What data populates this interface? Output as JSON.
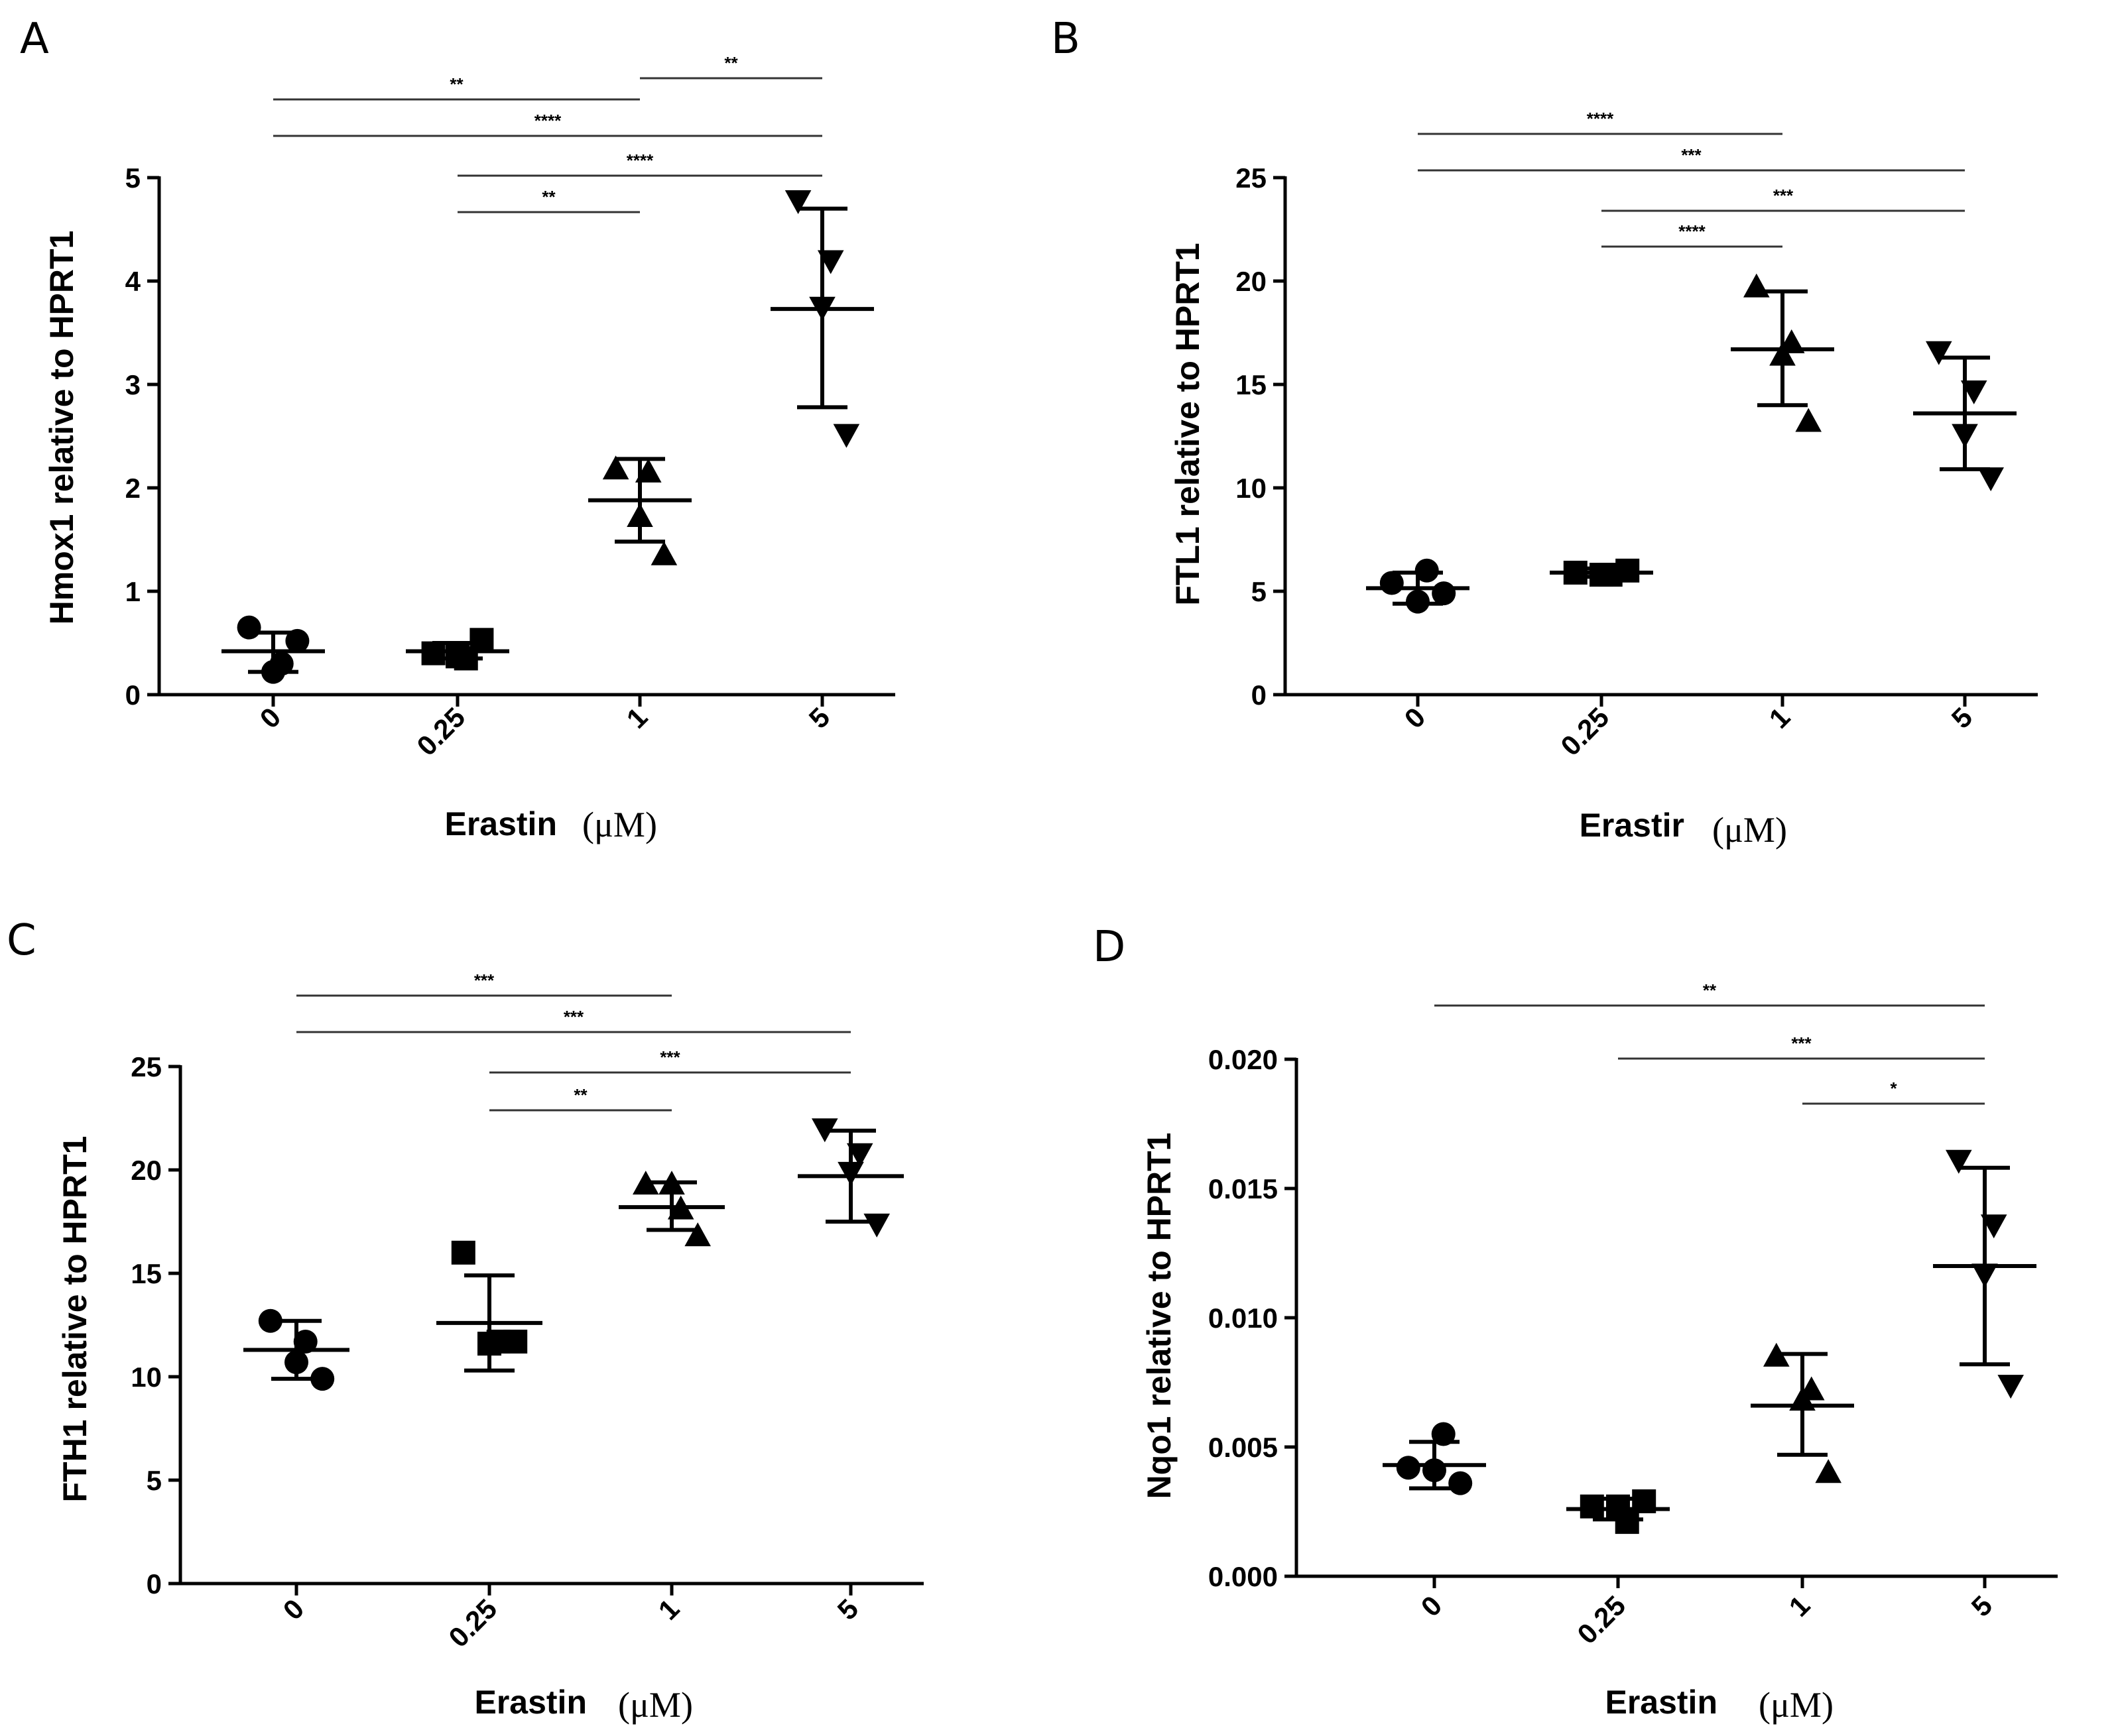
{
  "chart_data": [
    {
      "type": "scatter",
      "panel": "A",
      "ylabel": "Hmox1 relative to HPRT1",
      "xlabel": "Erastin",
      "xunit": "(μM)",
      "categories": [
        "0",
        "0.25",
        "1",
        "5"
      ],
      "yticks": [
        "0",
        "1",
        "2",
        "3",
        "4",
        "5"
      ],
      "ylim": [
        0,
        5
      ],
      "series": [
        {
          "category": "0",
          "marker": "circle",
          "points": [
            0.65,
            0.3,
            0.22,
            0.52
          ],
          "mean": 0.42,
          "sd_low": 0.22,
          "sd_high": 0.6
        },
        {
          "category": "0.25",
          "marker": "square",
          "points": [
            0.4,
            0.35,
            0.37,
            0.53
          ],
          "mean": 0.42,
          "sd_low": 0.35,
          "sd_high": 0.5
        },
        {
          "category": "1",
          "marker": "triangle-up",
          "points": [
            2.18,
            2.15,
            1.72,
            1.35
          ],
          "mean": 1.88,
          "sd_low": 1.48,
          "sd_high": 2.28
        },
        {
          "category": "5",
          "marker": "triangle-down",
          "points": [
            4.78,
            4.2,
            3.75,
            2.52
          ],
          "mean": 3.73,
          "sd_low": 2.78,
          "sd_high": 4.7
        }
      ],
      "significance": [
        {
          "from": "0",
          "to": "1",
          "label": "**"
        },
        {
          "from": "1",
          "to": "5",
          "label": "**"
        },
        {
          "from": "0",
          "to": "5",
          "label": "****"
        },
        {
          "from": "0.25",
          "to": "5",
          "label": "****"
        },
        {
          "from": "0.25",
          "to": "1",
          "label": "**"
        }
      ]
    },
    {
      "type": "scatter",
      "panel": "B",
      "ylabel": "FTL1 relative to HPRT1",
      "xlabel": "Erastir",
      "xunit": "(μM)",
      "categories": [
        "0",
        "0.25",
        "1",
        "5"
      ],
      "yticks": [
        "0",
        "5",
        "10",
        "15",
        "20",
        "25"
      ],
      "ylim": [
        0,
        25
      ],
      "series": [
        {
          "category": "0",
          "marker": "circle",
          "points": [
            5.4,
            6.0,
            4.5,
            4.9
          ],
          "mean": 5.15,
          "sd_low": 4.4,
          "sd_high": 5.9
        },
        {
          "category": "0.25",
          "marker": "square",
          "points": [
            5.9,
            5.8,
            5.8,
            6.0
          ],
          "mean": 5.9,
          "sd_low": 5.7,
          "sd_high": 6.1
        },
        {
          "category": "1",
          "marker": "triangle-up",
          "points": [
            19.7,
            17.0,
            16.4,
            13.2
          ],
          "mean": 16.7,
          "sd_low": 14.0,
          "sd_high": 19.5
        },
        {
          "category": "5",
          "marker": "triangle-down",
          "points": [
            16.6,
            14.7,
            12.6,
            10.5
          ],
          "mean": 13.6,
          "sd_low": 10.9,
          "sd_high": 16.3
        }
      ],
      "significance": [
        {
          "from": "0",
          "to": "1",
          "label": "****"
        },
        {
          "from": "0",
          "to": "5",
          "label": "***"
        },
        {
          "from": "0.25",
          "to": "5",
          "label": "***"
        },
        {
          "from": "0.25",
          "to": "1",
          "label": "****"
        }
      ]
    },
    {
      "type": "scatter",
      "panel": "C",
      "ylabel": "FTH1 relative to HPRT1",
      "xlabel": "Erastin",
      "xunit": "(μM)",
      "categories": [
        "0",
        "0.25",
        "1",
        "5"
      ],
      "yticks": [
        "0",
        "5",
        "10",
        "15",
        "20",
        "25"
      ],
      "ylim": [
        0,
        25
      ],
      "series": [
        {
          "category": "0",
          "marker": "circle",
          "points": [
            12.7,
            11.7,
            10.7,
            9.9
          ],
          "mean": 11.3,
          "sd_low": 9.9,
          "sd_high": 12.7
        },
        {
          "category": "0.25",
          "marker": "square",
          "points": [
            16.0,
            11.7,
            11.6,
            11.7
          ],
          "mean": 12.6,
          "sd_low": 10.3,
          "sd_high": 14.9
        },
        {
          "category": "1",
          "marker": "triangle-up",
          "points": [
            19.3,
            18.1,
            19.3,
            16.8
          ],
          "mean": 18.2,
          "sd_low": 17.1,
          "sd_high": 19.4
        },
        {
          "category": "5",
          "marker": "triangle-down",
          "points": [
            22.0,
            20.8,
            19.9,
            17.4
          ],
          "mean": 19.7,
          "sd_low": 17.5,
          "sd_high": 21.9
        }
      ],
      "significance": [
        {
          "from": "0",
          "to": "1",
          "label": "***"
        },
        {
          "from": "0",
          "to": "5",
          "label": "***"
        },
        {
          "from": "0.25",
          "to": "5",
          "label": "***"
        },
        {
          "from": "0.25",
          "to": "1",
          "label": "**"
        }
      ]
    },
    {
      "type": "scatter",
      "panel": "D",
      "ylabel": "Nqo1 relative to HPRT1",
      "xlabel": "Erastin",
      "xunit": "(μM)",
      "categories": [
        "0",
        "0.25",
        "1",
        "5"
      ],
      "yticks": [
        "0.000",
        "0.005",
        "0.010",
        "0.015",
        "0.020"
      ],
      "ylim": [
        0,
        0.02
      ],
      "series": [
        {
          "category": "0",
          "marker": "circle",
          "points": [
            0.0042,
            0.0055,
            0.0041,
            0.0036
          ],
          "mean": 0.0043,
          "sd_low": 0.0034,
          "sd_high": 0.0052
        },
        {
          "category": "0.25",
          "marker": "square",
          "points": [
            0.0027,
            0.0021,
            0.0027,
            0.0029
          ],
          "mean": 0.0026,
          "sd_low": 0.0022,
          "sd_high": 0.003
        },
        {
          "category": "1",
          "marker": "triangle-up",
          "points": [
            0.0085,
            0.0072,
            0.0068,
            0.004
          ],
          "mean": 0.0066,
          "sd_low": 0.0047,
          "sd_high": 0.0086
        },
        {
          "category": "5",
          "marker": "triangle-down",
          "points": [
            0.0161,
            0.0136,
            0.0117,
            0.0074
          ],
          "mean": 0.012,
          "sd_low": 0.0082,
          "sd_high": 0.0158
        }
      ],
      "significance": [
        {
          "from": "0",
          "to": "5",
          "label": "**"
        },
        {
          "from": "0.25",
          "to": "5",
          "label": "***"
        },
        {
          "from": "1",
          "to": "5",
          "label": "*"
        }
      ]
    }
  ]
}
